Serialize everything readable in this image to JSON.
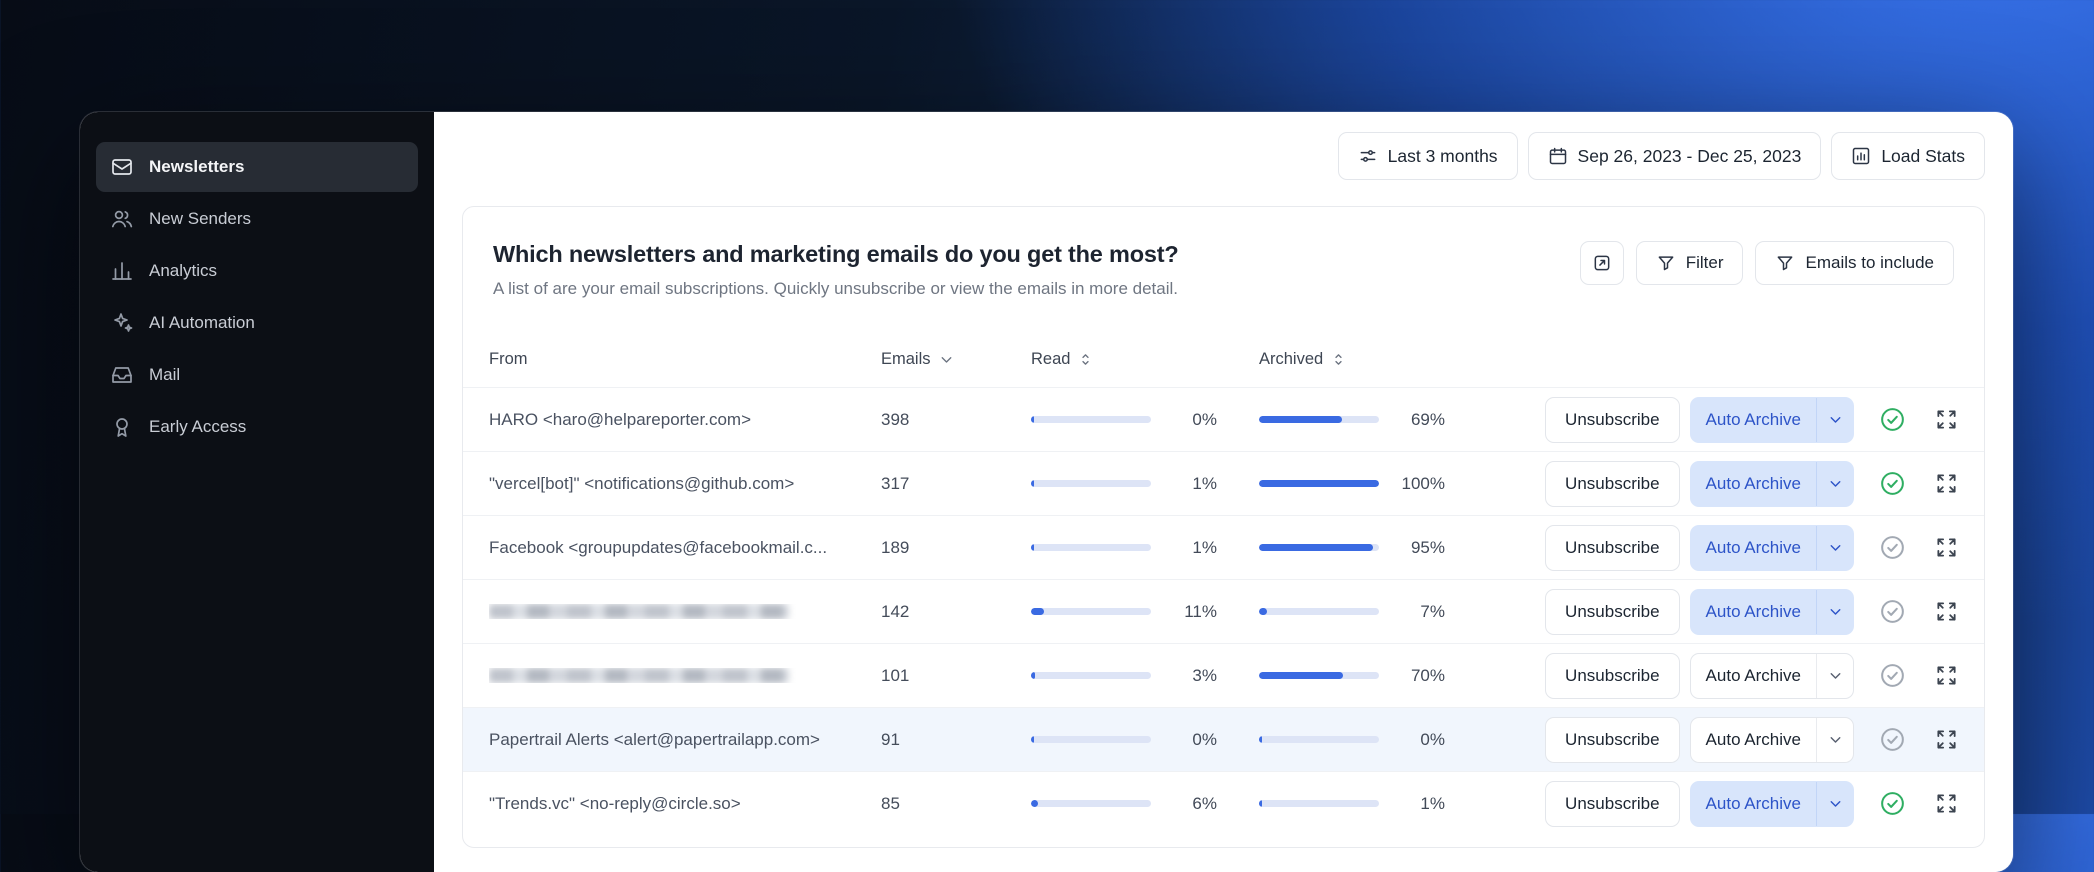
{
  "sidebar": {
    "items": [
      {
        "label": "Newsletters",
        "active": true
      },
      {
        "label": "New Senders",
        "active": false
      },
      {
        "label": "Analytics",
        "active": false
      },
      {
        "label": "AI Automation",
        "active": false
      },
      {
        "label": "Mail",
        "active": false
      },
      {
        "label": "Early Access",
        "active": false
      }
    ]
  },
  "topbar": {
    "period_label": "Last 3 months",
    "date_range": "Sep 26, 2023 - Dec 25, 2023",
    "load_stats_label": "Load Stats"
  },
  "panel": {
    "title": "Which newsletters and marketing emails do you get the most?",
    "subtitle": "A list of are your email subscriptions. Quickly unsubscribe or view the emails in more detail.",
    "filter_label": "Filter",
    "emails_to_include_label": "Emails to include"
  },
  "table": {
    "columns": {
      "from": "From",
      "emails": "Emails",
      "read": "Read",
      "archived": "Archived"
    },
    "actions": {
      "unsubscribe": "Unsubscribe",
      "auto_archive": "Auto Archive"
    },
    "rows": [
      {
        "from": "HARO <haro@helpareporter.com>",
        "blurred": false,
        "emails": 398,
        "read_pct": 0,
        "archived_pct": 69,
        "auto_archive_enabled": true,
        "archive_confirmed": true,
        "highlighted": false
      },
      {
        "from": "\"vercel[bot]\" <notifications@github.com>",
        "blurred": false,
        "emails": 317,
        "read_pct": 1,
        "archived_pct": 100,
        "auto_archive_enabled": true,
        "archive_confirmed": true,
        "highlighted": false
      },
      {
        "from": "Facebook <groupupdates@facebookmail.c...",
        "blurred": false,
        "emails": 189,
        "read_pct": 1,
        "archived_pct": 95,
        "auto_archive_enabled": true,
        "archive_confirmed": false,
        "highlighted": false
      },
      {
        "from": "",
        "blurred": true,
        "emails": 142,
        "read_pct": 11,
        "archived_pct": 7,
        "auto_archive_enabled": true,
        "archive_confirmed": false,
        "highlighted": false
      },
      {
        "from": "",
        "blurred": true,
        "emails": 101,
        "read_pct": 3,
        "archived_pct": 70,
        "auto_archive_enabled": false,
        "archive_confirmed": false,
        "highlighted": false
      },
      {
        "from": "Papertrail Alerts <alert@papertrailapp.com>",
        "blurred": false,
        "emails": 91,
        "read_pct": 0,
        "archived_pct": 0,
        "auto_archive_enabled": false,
        "archive_confirmed": false,
        "highlighted": true
      },
      {
        "from": "\"Trends.vc\" <no-reply@circle.so>",
        "blurred": false,
        "emails": 85,
        "read_pct": 6,
        "archived_pct": 1,
        "auto_archive_enabled": true,
        "archive_confirmed": true,
        "highlighted": false
      }
    ]
  },
  "colors": {
    "accent_blue": "#3a6ae2",
    "bar_track": "#dde4f6",
    "auto_archive_bg": "#d8e5fb",
    "auto_archive_text": "#2d54c8",
    "check_green": "#2fae62",
    "check_gray": "#a2a9b3",
    "row_highlight": "#f1f6fd",
    "sidebar_bg": "#0c0f15"
  }
}
